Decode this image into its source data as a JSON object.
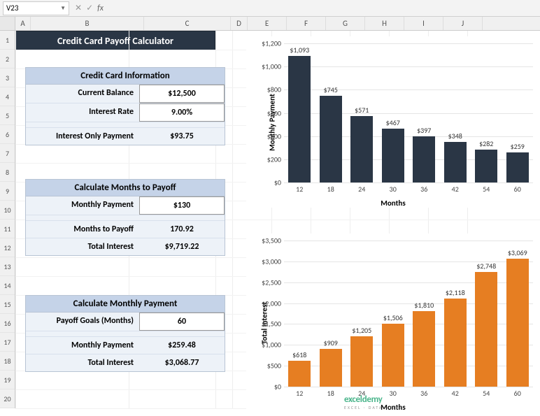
{
  "namebox": "V23",
  "fx": "fx",
  "columns": [
    "A",
    "B",
    "C",
    "D",
    "E",
    "F",
    "G",
    "H",
    "I",
    "J"
  ],
  "rows": 20,
  "title": "Credit Card Payoff Calculator",
  "section1": {
    "header": "Credit Card Information",
    "r1_label": "Current Balance",
    "r1_val": "$12,500",
    "r2_label": "Interest Rate",
    "r2_val": "9.00%",
    "r3_label": "Interest Only Payment",
    "r3_val": "$93.75"
  },
  "section2": {
    "header": "Calculate Months to Payoff",
    "r1_label": "Monthly Payment",
    "r1_val": "$130",
    "r2_label": "Months to Payoff",
    "r2_val": "170.92",
    "r3_label": "Total Interest",
    "r3_val": "$9,719.22"
  },
  "section3": {
    "header": "Calculate Monthly Payment",
    "r1_label": "Payoff Goals (Months)",
    "r1_val": "60",
    "r2_label": "Monthly Payment",
    "r2_val": "$259.48",
    "r3_label": "Total Interest",
    "r3_val": "$3,068.77"
  },
  "chart1": {
    "type": "bar",
    "ylabel": "Monthly Payment",
    "xlabel": "Months",
    "categories": [
      "12",
      "18",
      "24",
      "30",
      "36",
      "42",
      "54",
      "60"
    ],
    "values": [
      1093,
      745,
      571,
      467,
      397,
      348,
      282,
      259
    ],
    "labels": [
      "$1,093",
      "$745",
      "$571",
      "$467",
      "$397",
      "$348",
      "$282",
      "$259"
    ],
    "bar_color": "#2a3645",
    "ylim_max": 1200,
    "ytick_step": 200,
    "yprefix": "$",
    "ysep": true,
    "bar_width_pct": 9
  },
  "chart2": {
    "type": "bar",
    "ylabel": "Total Interest",
    "xlabel": "Months",
    "categories": [
      "12",
      "18",
      "24",
      "30",
      "36",
      "42",
      "54",
      "60"
    ],
    "values": [
      618,
      909,
      1205,
      1506,
      1810,
      2118,
      2748,
      3069
    ],
    "labels": [
      "$618",
      "$909",
      "$1,205",
      "$1,506",
      "$1,810",
      "$2,118",
      "$2,748",
      "$3,069"
    ],
    "bar_color": "#e67e22",
    "ylim_max": 3500,
    "ytick_step": 500,
    "yprefix": "$",
    "ysep": true,
    "bar_width_pct": 9
  },
  "watermark": "exceldemy",
  "watermark_sub": "EXCEL · DATA · TIPS"
}
